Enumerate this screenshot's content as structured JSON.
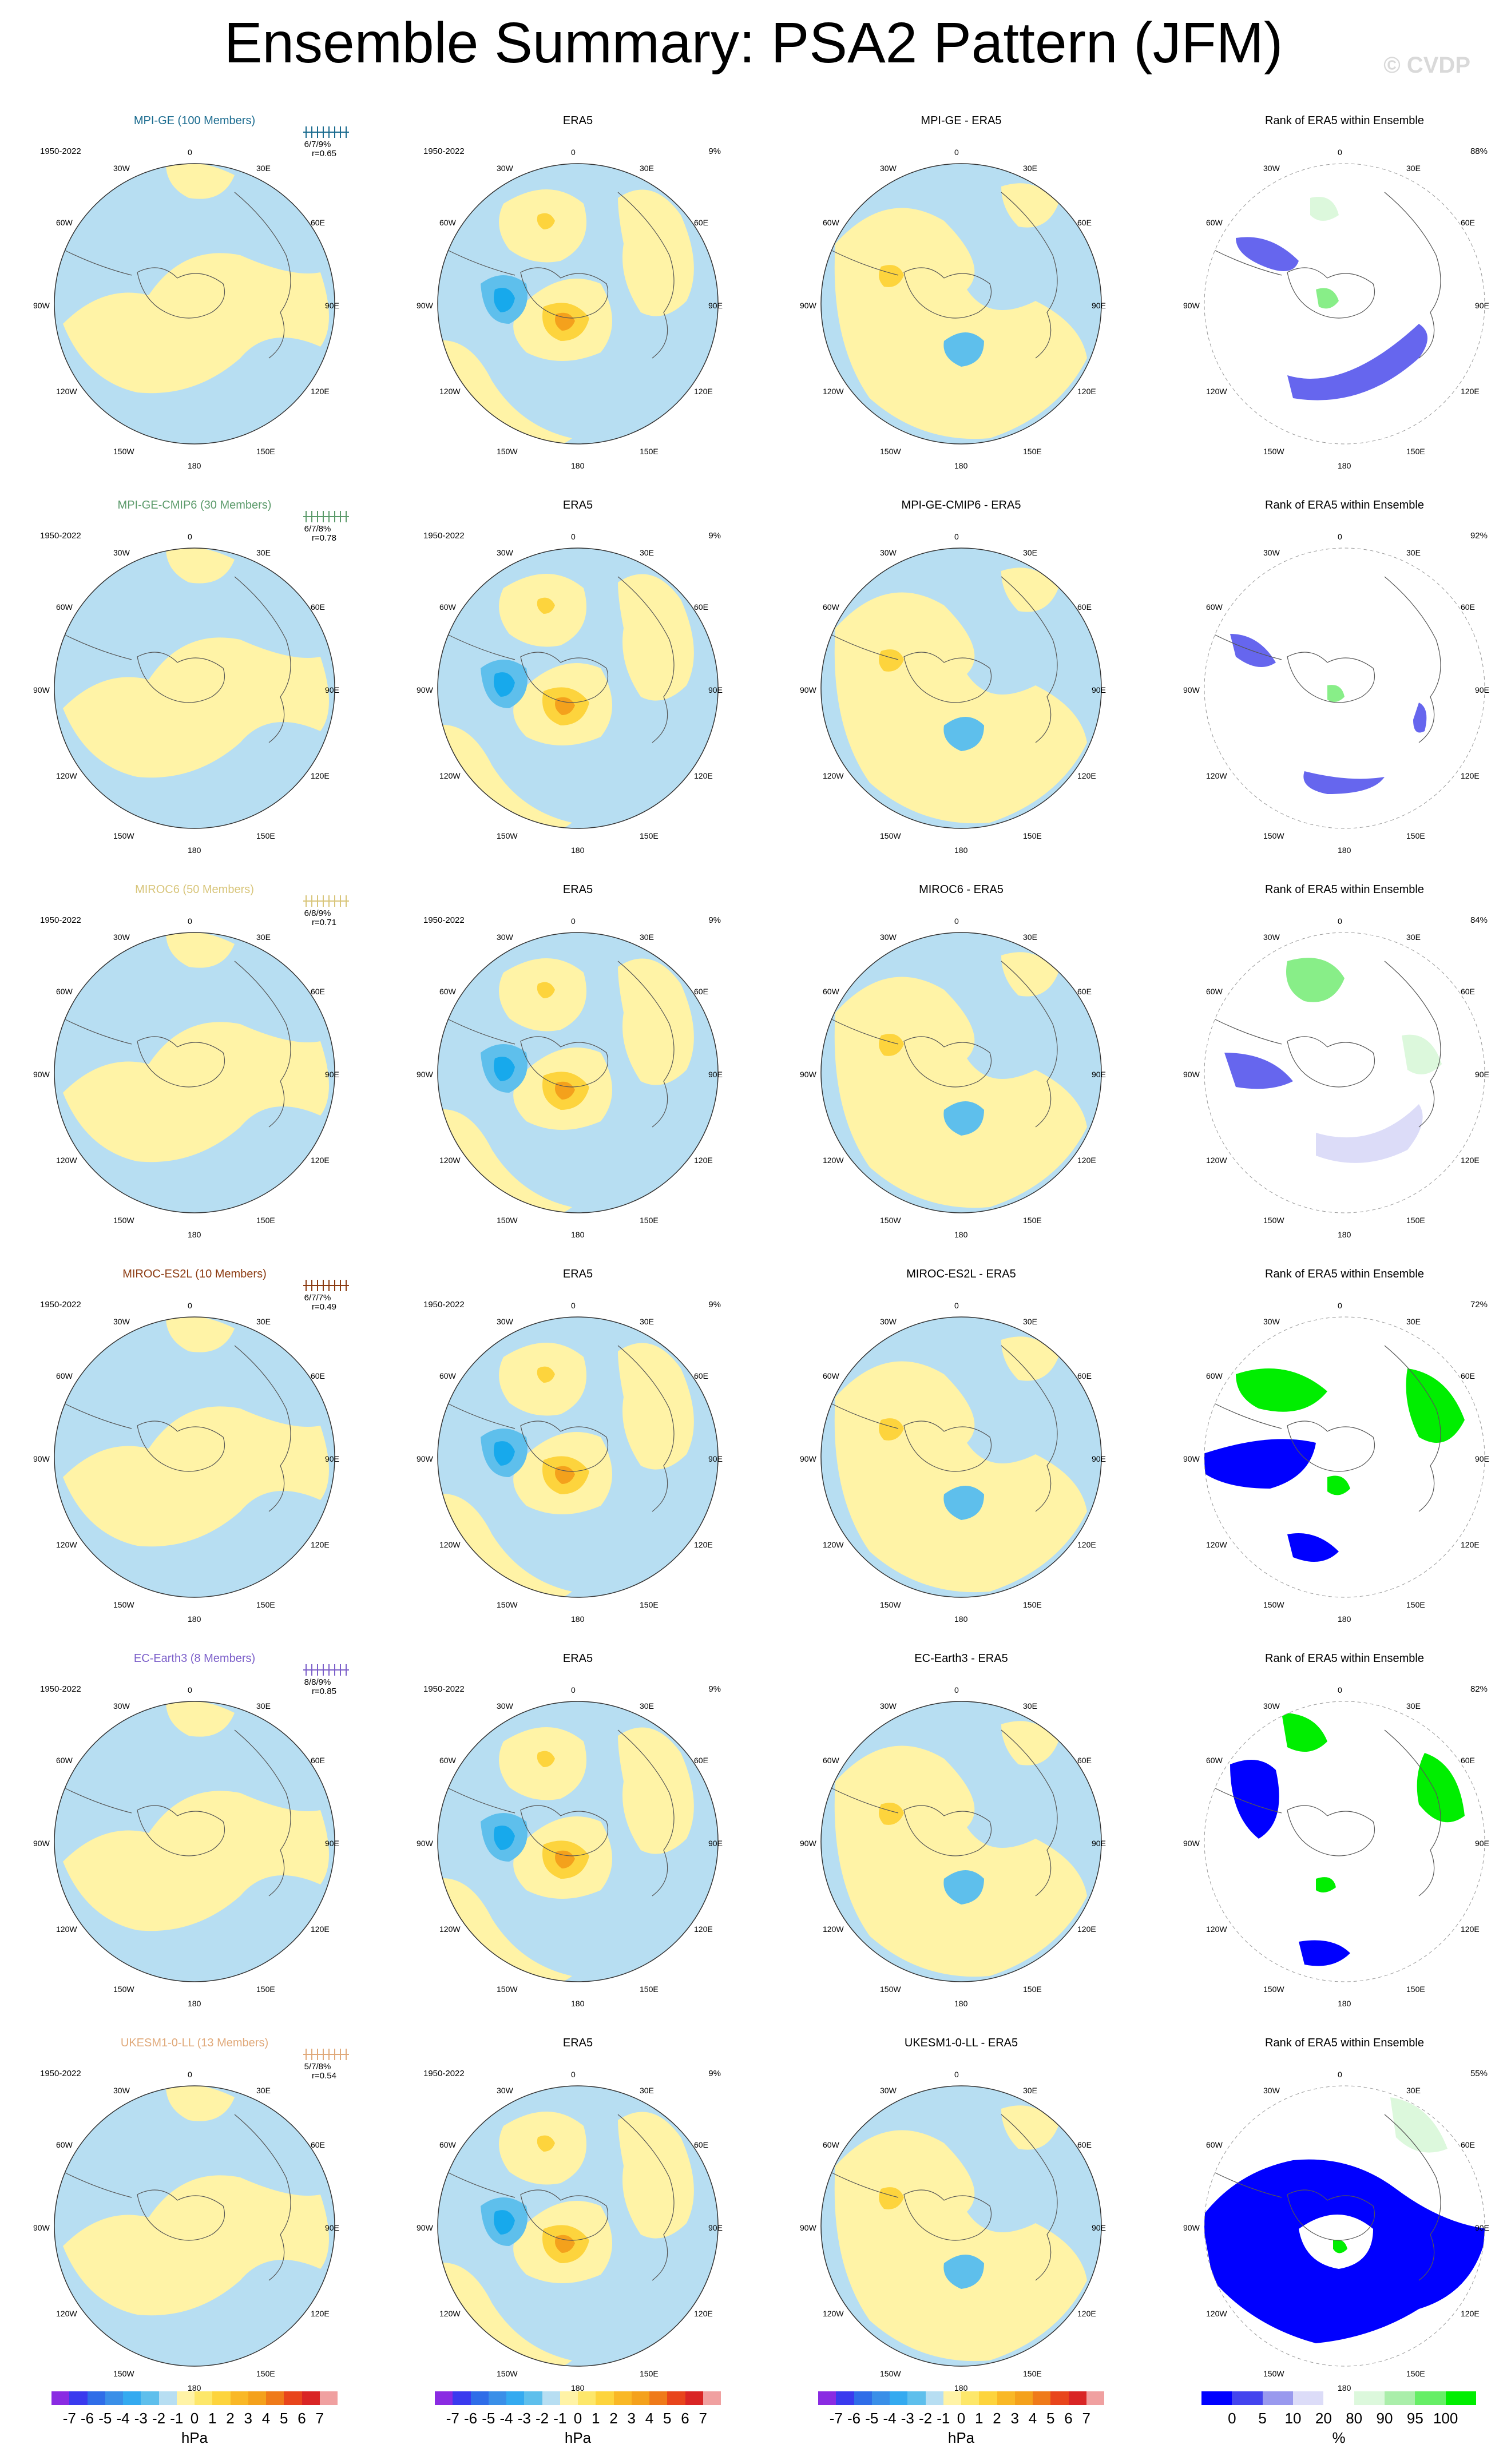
{
  "title": "Ensemble Summary: PSA2 Pattern (JFM)",
  "copyright": "© CVDP",
  "period": "1950-2022",
  "lon_labels": {
    "top": "0",
    "tr": "30E",
    "tl": "30W",
    "r1": "60E",
    "l1": "60W",
    "r2": "90E",
    "l2": "90W",
    "r3": "120E",
    "l3": "120W",
    "br": "150E",
    "bl": "150W",
    "bottom": "180"
  },
  "colors": {
    "blue_light": "#b7def2",
    "blue_mid": "#5ebfec",
    "blue_dark": "#17a9ec",
    "yellow_light": "#fff3a6",
    "yellow_mid": "#fdd43d",
    "orange": "#f4a11c",
    "rank_blue_dark": "#0000ff",
    "rank_blue_mid": "#6666ee",
    "rank_blue_light": "#dcdcf8",
    "rank_green_dark": "#00ee00",
    "rank_green_mid": "#88ee88",
    "rank_green_light": "#dcf8dc"
  },
  "rows": [
    {
      "model": "MPI-GE (100 Members)",
      "model_color": "#1a6b8f",
      "stats": "6/7/9%",
      "corr": "r=0.65",
      "diff_title": "MPI-GE - ERA5",
      "rank_pct": "88%",
      "era5_pct": "9%"
    },
    {
      "model": "MPI-GE-CMIP6 (30 Members)",
      "model_color": "#5b9a6a",
      "stats": "6/7/8%",
      "corr": "r=0.78",
      "diff_title": "MPI-GE-CMIP6 - ERA5",
      "rank_pct": "92%",
      "era5_pct": "9%"
    },
    {
      "model": "MIROC6 (50 Members)",
      "model_color": "#d8c57a",
      "stats": "6/8/9%",
      "corr": "r=0.71",
      "diff_title": "MIROC6 - ERA5",
      "rank_pct": "84%",
      "era5_pct": "9%"
    },
    {
      "model": "MIROC-ES2L (10 Members)",
      "model_color": "#8b3a10",
      "stats": "6/7/7%",
      "corr": "r=0.49",
      "diff_title": "MIROC-ES2L - ERA5",
      "rank_pct": "72%",
      "era5_pct": "9%"
    },
    {
      "model": "EC-Earth3 (8 Members)",
      "model_color": "#7b5ec9",
      "stats": "8/8/9%",
      "corr": "r=0.85",
      "diff_title": "EC-Earth3 - ERA5",
      "rank_pct": "82%",
      "era5_pct": "9%"
    },
    {
      "model": "UKESM1-0-LL (13 Members)",
      "model_color": "#e0a97a",
      "stats": "5/7/8%",
      "corr": "r=0.54",
      "diff_title": "UKESM1-0-LL - ERA5",
      "rank_pct": "55%",
      "era5_pct": "9%"
    }
  ],
  "era5_title": "ERA5",
  "rank_title": "Rank of ERA5 within Ensemble",
  "colorbar_hpa": {
    "ticks": [
      "-7",
      "-6",
      "-5",
      "-4",
      "-3",
      "-2",
      "-1",
      "0",
      "1",
      "2",
      "3",
      "4",
      "5",
      "6",
      "7"
    ],
    "unit": "hPa",
    "colors": [
      "#8a2be2",
      "#3a3aee",
      "#2f6de8",
      "#3a8fe8",
      "#34aaf0",
      "#5ebfec",
      "#b7def2",
      "#fff3a6",
      "#fde76a",
      "#fdd43d",
      "#f9b826",
      "#f4a11c",
      "#ef7a1a",
      "#e8451c",
      "#d92525",
      "#f0a0a0"
    ]
  },
  "colorbar_rank": {
    "ticks": [
      "0",
      "5",
      "10",
      "20",
      "80",
      "90",
      "95",
      "100"
    ],
    "unit": "%",
    "colors": [
      "#0000ff",
      "#4444ee",
      "#9999ee",
      "#dcdcf8",
      "#ffffff",
      "#dcf8dc",
      "#aaeeaa",
      "#66ee66",
      "#00ee00"
    ]
  }
}
